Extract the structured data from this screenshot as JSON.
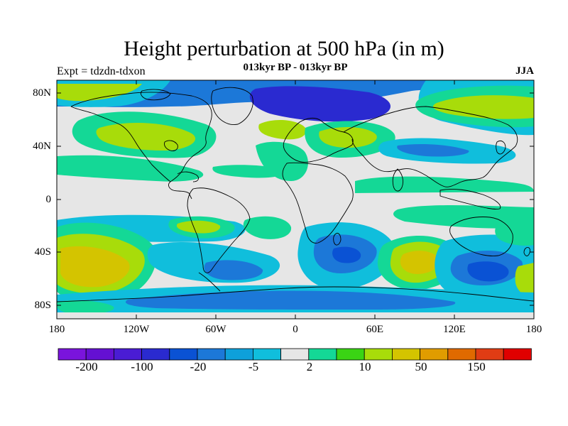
{
  "title": "Height perturbation at 500 hPa (in m)",
  "subtitle": "013kyr BP - 013kyr BP",
  "experiment": "Expt = tdzdn-tdxon",
  "season": "JJA",
  "lat_labels": [
    "80N",
    "40N",
    "0",
    "40S",
    "80S"
  ],
  "lon_labels": [
    "180",
    "120W",
    "60W",
    "0",
    "60E",
    "120E",
    "180"
  ],
  "colorbar": {
    "colors": [
      "#7a14dc",
      "#6410d2",
      "#4a1cd4",
      "#2a2ad0",
      "#0a52d4",
      "#1c78d8",
      "#0ea0da",
      "#10bedc",
      "#e6e6e6",
      "#14d896",
      "#3ad414",
      "#a8dc0a",
      "#d4c400",
      "#e09c00",
      "#e06a00",
      "#e03c14",
      "#e00000"
    ],
    "labels": [
      "-200",
      "-100",
      "-20",
      "-5",
      "2",
      "10",
      "50",
      "150"
    ]
  },
  "map_colors": {
    "land_line": "#000000",
    "background": "#e6e6e6"
  }
}
